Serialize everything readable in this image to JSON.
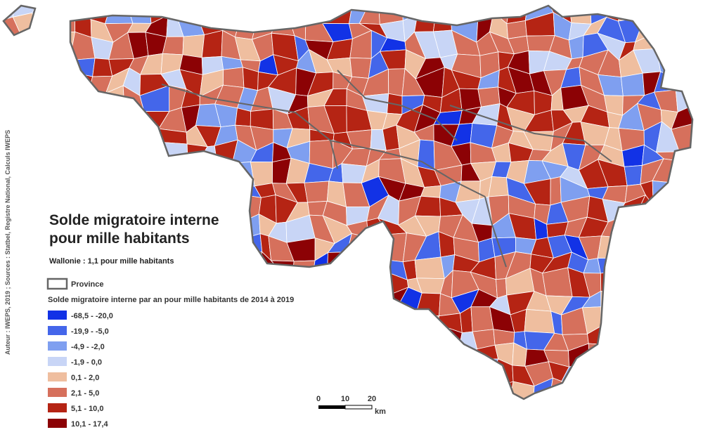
{
  "title_lines": [
    "Solde migratoire interne",
    "pour mille habitants"
  ],
  "subtitle": "Wallonie : 1,1 pour mille habitants",
  "province_label": "Province",
  "legend": {
    "title": "Solde migratoire interne par an pour mille habitants de 2014 à 2019",
    "items": [
      {
        "label": "-68,5 - -20,0",
        "color": "#1232e6"
      },
      {
        "label": "-19,9 - -5,0",
        "color": "#4466ea"
      },
      {
        "label": "-4,9 - -2,0",
        "color": "#7f9ff0"
      },
      {
        "label": "-1,9 - 0,0",
        "color": "#c8d5f6"
      },
      {
        "label": "0,1 - 2,0",
        "color": "#efbe9f"
      },
      {
        "label": "2,1 - 5,0",
        "color": "#d6705c"
      },
      {
        "label": "5,1 - 10,0",
        "color": "#b52414"
      },
      {
        "label": "10,1 - 17,4",
        "color": "#8c0205"
      }
    ]
  },
  "scale_bar": {
    "labels": [
      "0",
      "10",
      "20"
    ],
    "unit": "km"
  },
  "credit": "Auteur : IWEPS, 2019 ; Sources : Statbel, Registre National, Calculs IWEPS"
}
